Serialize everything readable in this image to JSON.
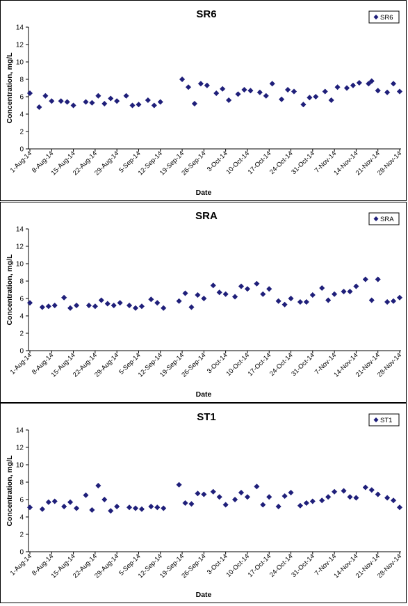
{
  "chart_data": [
    {
      "type": "scatter",
      "title": "SR6",
      "xlabel": "Date",
      "ylabel": "Concentration, mg/L",
      "ylim": [
        0,
        14
      ],
      "yticks": [
        0,
        2,
        4,
        6,
        8,
        10,
        12,
        14
      ],
      "xlim": [
        "2014-08-01",
        "2014-11-28"
      ],
      "xtick_labels": [
        "1-Aug-14",
        "8-Aug-14",
        "15-Aug-14",
        "22-Aug-14",
        "29-Aug-14",
        "5-Sep-14",
        "12-Sep-14",
        "19-Sep-14",
        "26-Sep-14",
        "3-Oct-14",
        "10-Oct-14",
        "17-Oct-14",
        "24-Oct-14",
        "31-Oct-14",
        "7-Nov-14",
        "14-Nov-14",
        "21-Nov-14",
        "28-Nov-14"
      ],
      "legend_position": "top-right",
      "marker_color": "#1f1f7a",
      "series": [
        {
          "name": "SR6",
          "x": [
            "2014-08-01",
            "2014-08-04",
            "2014-08-06",
            "2014-08-08",
            "2014-08-11",
            "2014-08-13",
            "2014-08-15",
            "2014-08-19",
            "2014-08-21",
            "2014-08-23",
            "2014-08-25",
            "2014-08-27",
            "2014-08-29",
            "2014-09-01",
            "2014-09-03",
            "2014-09-05",
            "2014-09-08",
            "2014-09-10",
            "2014-09-12",
            "2014-09-19",
            "2014-09-21",
            "2014-09-23",
            "2014-09-25",
            "2014-09-27",
            "2014-09-30",
            "2014-10-02",
            "2014-10-04",
            "2014-10-07",
            "2014-10-09",
            "2014-10-11",
            "2014-10-14",
            "2014-10-16",
            "2014-10-18",
            "2014-10-21",
            "2014-10-23",
            "2014-10-25",
            "2014-10-28",
            "2014-10-30",
            "2014-11-01",
            "2014-11-04",
            "2014-11-06",
            "2014-11-08",
            "2014-11-11",
            "2014-11-13",
            "2014-11-15",
            "2014-11-18",
            "2014-11-19",
            "2014-11-21",
            "2014-11-24",
            "2014-11-26",
            "2014-11-28"
          ],
          "y": [
            6.4,
            4.8,
            6.1,
            5.5,
            5.5,
            5.4,
            5.0,
            5.4,
            5.3,
            6.1,
            5.2,
            5.8,
            5.5,
            6.1,
            5.0,
            5.1,
            5.6,
            5.0,
            5.4,
            8.0,
            7.1,
            5.2,
            7.5,
            7.3,
            6.4,
            6.9,
            5.6,
            6.3,
            6.8,
            6.7,
            6.5,
            6.1,
            7.5,
            5.7,
            6.8,
            6.6,
            5.1,
            5.9,
            6.0,
            6.6,
            5.6,
            7.1,
            7.0,
            7.3,
            7.6,
            7.5,
            7.8,
            6.7,
            6.5,
            7.5,
            6.6
          ]
        }
      ]
    },
    {
      "type": "scatter",
      "title": "SRA",
      "xlabel": "Date",
      "ylabel": "Concentration, mg/L",
      "ylim": [
        0,
        14
      ],
      "yticks": [
        0,
        2,
        4,
        6,
        8,
        10,
        12,
        14
      ],
      "xlim": [
        "2014-08-01",
        "2014-11-28"
      ],
      "xtick_labels": [
        "1-Aug-14",
        "8-Aug-14",
        "15-Aug-14",
        "22-Aug-14",
        "29-Aug-14",
        "5-Sep-14",
        "12-Sep-14",
        "19-Sep-14",
        "26-Sep-14",
        "3-Oct-14",
        "10-Oct-14",
        "17-Oct-14",
        "24-Oct-14",
        "31-Oct-14",
        "7-Nov-14",
        "14-Nov-14",
        "21-Nov-14",
        "28-Nov-14"
      ],
      "legend_position": "top-right",
      "marker_color": "#1f1f7a",
      "series": [
        {
          "name": "SRA",
          "x": [
            "2014-08-01",
            "2014-08-05",
            "2014-08-07",
            "2014-08-09",
            "2014-08-12",
            "2014-08-14",
            "2014-08-16",
            "2014-08-20",
            "2014-08-22",
            "2014-08-24",
            "2014-08-26",
            "2014-08-28",
            "2014-08-30",
            "2014-09-02",
            "2014-09-04",
            "2014-09-06",
            "2014-09-09",
            "2014-09-11",
            "2014-09-13",
            "2014-09-18",
            "2014-09-20",
            "2014-09-22",
            "2014-09-24",
            "2014-09-26",
            "2014-09-29",
            "2014-10-01",
            "2014-10-03",
            "2014-10-06",
            "2014-10-08",
            "2014-10-10",
            "2014-10-13",
            "2014-10-15",
            "2014-10-17",
            "2014-10-20",
            "2014-10-22",
            "2014-10-24",
            "2014-10-27",
            "2014-10-29",
            "2014-10-31",
            "2014-11-03",
            "2014-11-05",
            "2014-11-07",
            "2014-11-10",
            "2014-11-12",
            "2014-11-14",
            "2014-11-17",
            "2014-11-19",
            "2014-11-21",
            "2014-11-24",
            "2014-11-26",
            "2014-11-28"
          ],
          "y": [
            5.5,
            5.0,
            5.1,
            5.2,
            6.1,
            4.9,
            5.2,
            5.2,
            5.1,
            5.8,
            5.4,
            5.2,
            5.5,
            5.2,
            4.9,
            5.1,
            5.9,
            5.5,
            4.9,
            5.7,
            6.6,
            5.0,
            6.4,
            6.0,
            7.5,
            6.7,
            6.5,
            6.2,
            7.4,
            7.1,
            7.7,
            6.5,
            7.1,
            5.7,
            5.3,
            6.0,
            5.6,
            5.6,
            6.4,
            7.2,
            5.8,
            6.5,
            6.8,
            6.8,
            7.4,
            8.2,
            5.8,
            8.2,
            5.6,
            5.7,
            6.1
          ]
        }
      ]
    },
    {
      "type": "scatter",
      "title": "ST1",
      "xlabel": "Date",
      "ylabel": "Concentration, mg/L",
      "ylim": [
        0,
        14
      ],
      "yticks": [
        0,
        2,
        4,
        6,
        8,
        10,
        12,
        14
      ],
      "xlim": [
        "2014-08-01",
        "2014-11-28"
      ],
      "xtick_labels": [
        "1-Aug-14",
        "8-Aug-14",
        "15-Aug-14",
        "22-Aug-14",
        "29-Aug-14",
        "5-Sep-14",
        "12-Sep-14",
        "19-Sep-14",
        "26-Sep-14",
        "3-Oct-14",
        "10-Oct-14",
        "17-Oct-14",
        "24-Oct-14",
        "31-Oct-14",
        "7-Nov-14",
        "14-Nov-14",
        "21-Nov-14",
        "28-Nov-14"
      ],
      "legend_position": "top-right",
      "marker_color": "#1f1f7a",
      "series": [
        {
          "name": "ST1",
          "x": [
            "2014-08-01",
            "2014-08-05",
            "2014-08-07",
            "2014-08-09",
            "2014-08-12",
            "2014-08-14",
            "2014-08-16",
            "2014-08-19",
            "2014-08-21",
            "2014-08-23",
            "2014-08-25",
            "2014-08-27",
            "2014-08-29",
            "2014-09-02",
            "2014-09-04",
            "2014-09-06",
            "2014-09-09",
            "2014-09-11",
            "2014-09-13",
            "2014-09-18",
            "2014-09-20",
            "2014-09-22",
            "2014-09-24",
            "2014-09-26",
            "2014-09-29",
            "2014-10-01",
            "2014-10-03",
            "2014-10-06",
            "2014-10-08",
            "2014-10-10",
            "2014-10-13",
            "2014-10-15",
            "2014-10-17",
            "2014-10-20",
            "2014-10-22",
            "2014-10-24",
            "2014-10-27",
            "2014-10-29",
            "2014-10-31",
            "2014-11-03",
            "2014-11-05",
            "2014-11-07",
            "2014-11-10",
            "2014-11-12",
            "2014-11-14",
            "2014-11-17",
            "2014-11-19",
            "2014-11-21",
            "2014-11-24",
            "2014-11-26",
            "2014-11-28"
          ],
          "y": [
            5.1,
            4.9,
            5.7,
            5.8,
            5.2,
            5.7,
            5.0,
            6.5,
            4.8,
            7.6,
            6.0,
            4.7,
            5.2,
            5.1,
            5.0,
            4.9,
            5.2,
            5.1,
            5.0,
            7.7,
            5.6,
            5.5,
            6.7,
            6.6,
            6.9,
            6.3,
            5.4,
            6.0,
            6.8,
            6.3,
            7.5,
            5.4,
            6.3,
            5.2,
            6.4,
            6.8,
            5.3,
            5.6,
            5.8,
            5.9,
            6.3,
            6.9,
            7.0,
            6.3,
            6.2,
            7.4,
            7.1,
            6.6,
            6.2,
            5.9,
            5.1
          ]
        }
      ]
    }
  ]
}
